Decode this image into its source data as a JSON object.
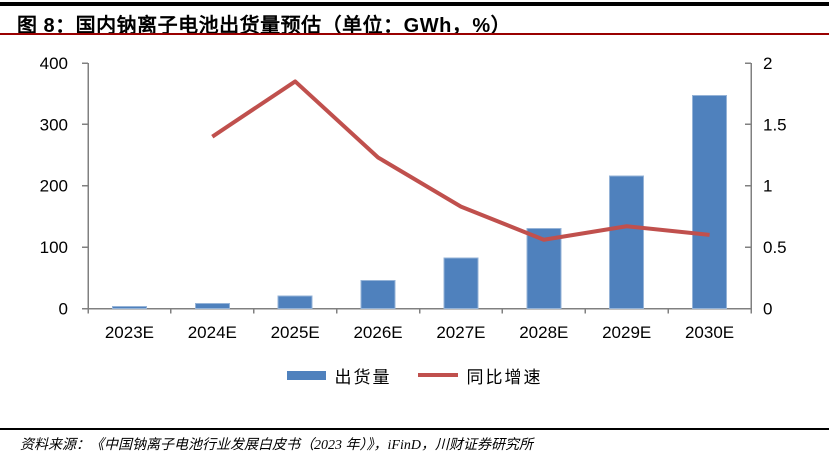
{
  "header": {
    "title": "图 8：国内钠离子电池出货量预估（单位：GWh，%）"
  },
  "chart_data": {
    "type": "combo",
    "title": "国内钠离子电池出货量预估",
    "unit": "GWh，%",
    "categories": [
      "2023E",
      "2024E",
      "2025E",
      "2026E",
      "2027E",
      "2028E",
      "2029E",
      "2030E"
    ],
    "series": [
      {
        "name": "出货量",
        "type": "bar",
        "axis": "left",
        "color": "#4F81BD",
        "values": [
          3,
          8,
          20,
          46,
          82,
          130,
          216,
          347
        ]
      },
      {
        "name": "同比增速",
        "type": "line",
        "axis": "right",
        "color": "#C0504D",
        "values": [
          null,
          1.4,
          1.85,
          1.23,
          0.83,
          0.56,
          0.67,
          0.6
        ]
      }
    ],
    "left_axis": {
      "min": 0,
      "max": 400,
      "tick_values": [
        0,
        100,
        200,
        300,
        400
      ],
      "tick_labels": [
        "0",
        "100",
        "200",
        "300",
        "400"
      ]
    },
    "right_axis": {
      "min": 0,
      "max": 2,
      "tick_values": [
        0,
        0.5,
        1,
        1.5,
        2
      ],
      "tick_labels": [
        "0",
        "0.5",
        "1",
        "1.5",
        "2"
      ]
    },
    "legend": {
      "position": "bottom",
      "entries": [
        "出货量",
        "同比增速"
      ]
    },
    "grid": false
  },
  "colors": {
    "bar_fill": "#4F81BD",
    "bar_border": "#95B3D7",
    "line": "#C0504D",
    "axis": "#808080",
    "title_rule": "#990000",
    "top_rule": "#000000"
  },
  "footer": {
    "source": "资料来源：《中国钠离子电池行业发展白皮书（2023 年）》，iFinD，川财证券研究所"
  }
}
